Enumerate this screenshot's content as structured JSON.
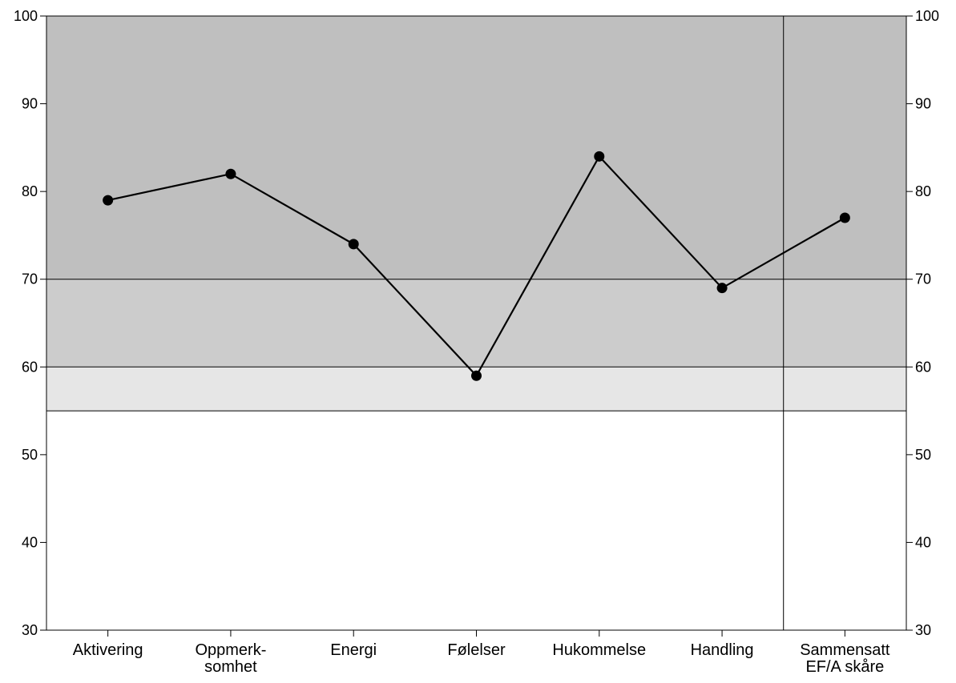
{
  "chart_data": {
    "type": "line",
    "categories": [
      [
        "Aktivering"
      ],
      [
        "Oppmerk-",
        "somhet"
      ],
      [
        "Energi"
      ],
      [
        "Følelser"
      ],
      [
        "Hukommelse"
      ],
      [
        "Handling"
      ],
      [
        "Sammensatt",
        "EF/A skåre"
      ]
    ],
    "values": [
      79,
      82,
      74,
      59,
      84,
      69,
      77
    ],
    "ylim": [
      30,
      100
    ],
    "yticks": [
      30,
      40,
      50,
      60,
      70,
      80,
      90,
      100
    ],
    "y_axis_right": true,
    "bands": [
      {
        "from": 70,
        "to": 100,
        "color": "#bfbfbf"
      },
      {
        "from": 60,
        "to": 70,
        "color": "#cccccc"
      },
      {
        "from": 55,
        "to": 60,
        "color": "#e6e6e6"
      }
    ],
    "reference_lines": [
      70,
      60,
      55
    ],
    "separator_after_index": 5,
    "line_color": "#000000",
    "marker_color": "#000000"
  }
}
